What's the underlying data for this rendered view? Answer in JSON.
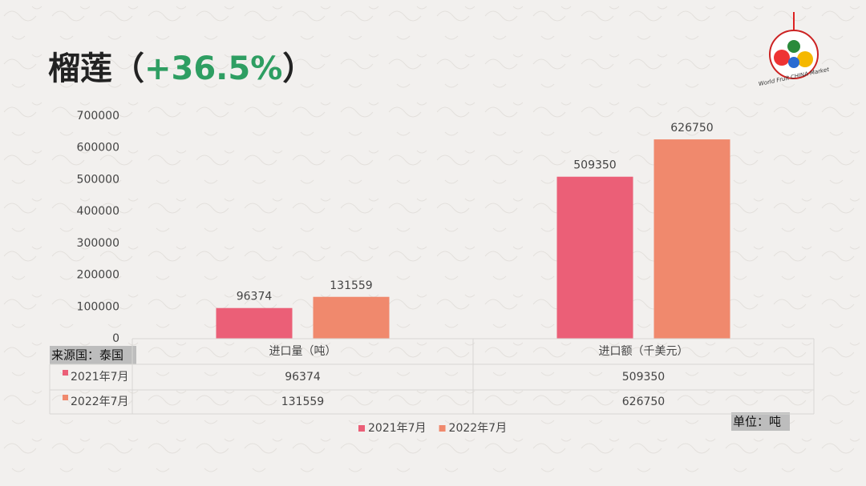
{
  "title": [
    "榴莲（",
    "+36.5%",
    "）"
  ],
  "logo_text": "World Fruit CHINA Market",
  "source_note": "来源国：泰国",
  "unit_note": "单位：吨",
  "chart_data": {
    "type": "bar",
    "categories": [
      "进口量（吨）",
      "进口额（千美元）"
    ],
    "series": [
      {
        "name": "2021年7月",
        "color": "#eb5f77",
        "values": [
          96374,
          509350
        ]
      },
      {
        "name": "2022年7月",
        "color": "#f0896d",
        "values": [
          131559,
          626750
        ]
      }
    ],
    "ylim": [
      0,
      700000
    ],
    "yticks": [
      0,
      100000,
      200000,
      300000,
      400000,
      500000,
      600000,
      700000
    ],
    "grid": false,
    "legend": "bottom",
    "data_table": true
  }
}
